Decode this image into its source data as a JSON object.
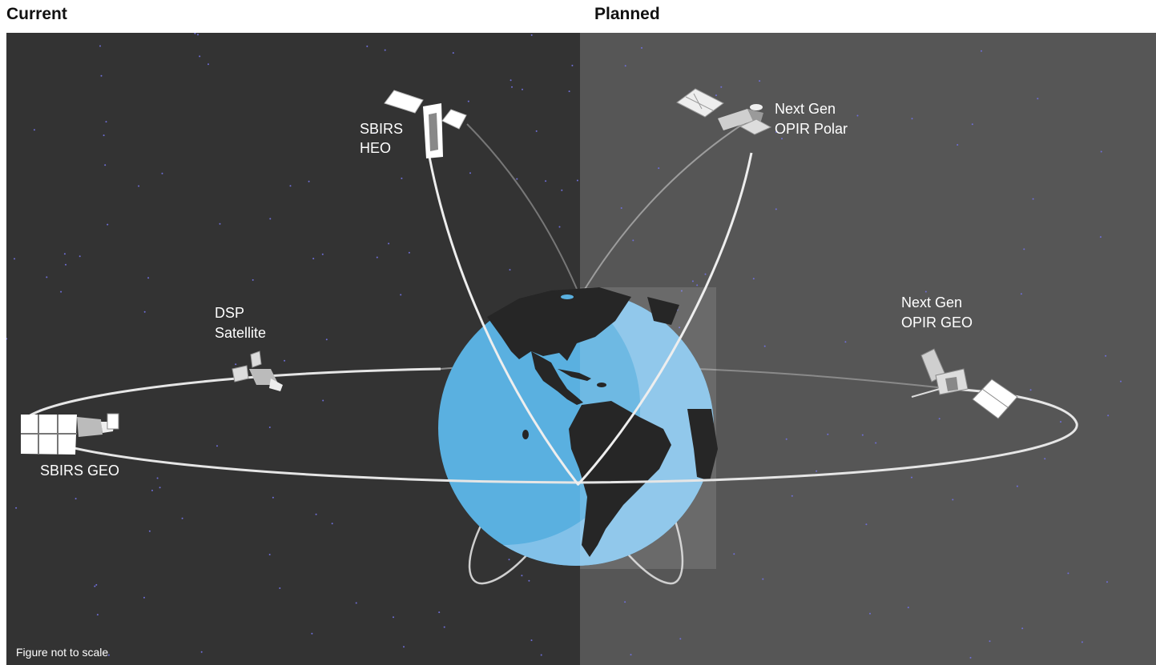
{
  "headings": {
    "current": "Current",
    "planned": "Planned"
  },
  "labels": {
    "sbirs_heo": [
      "SBIRS",
      "HEO"
    ],
    "dsp": [
      "DSP",
      "Satellite"
    ],
    "sbirs_geo": "SBIRS GEO",
    "next_gen_polar": [
      "Next Gen",
      "OPIR Polar"
    ],
    "next_gen_geo": [
      "Next Gen",
      "OPIR GEO"
    ]
  },
  "note": "Figure not to scale",
  "colors": {
    "current_bg": "#333333",
    "planned_bg": "#565656",
    "earth_ocean": "#6fb7e4",
    "earth_land": "#262626",
    "orbit": "#e6e6e6",
    "star": "#6f6fd8"
  }
}
